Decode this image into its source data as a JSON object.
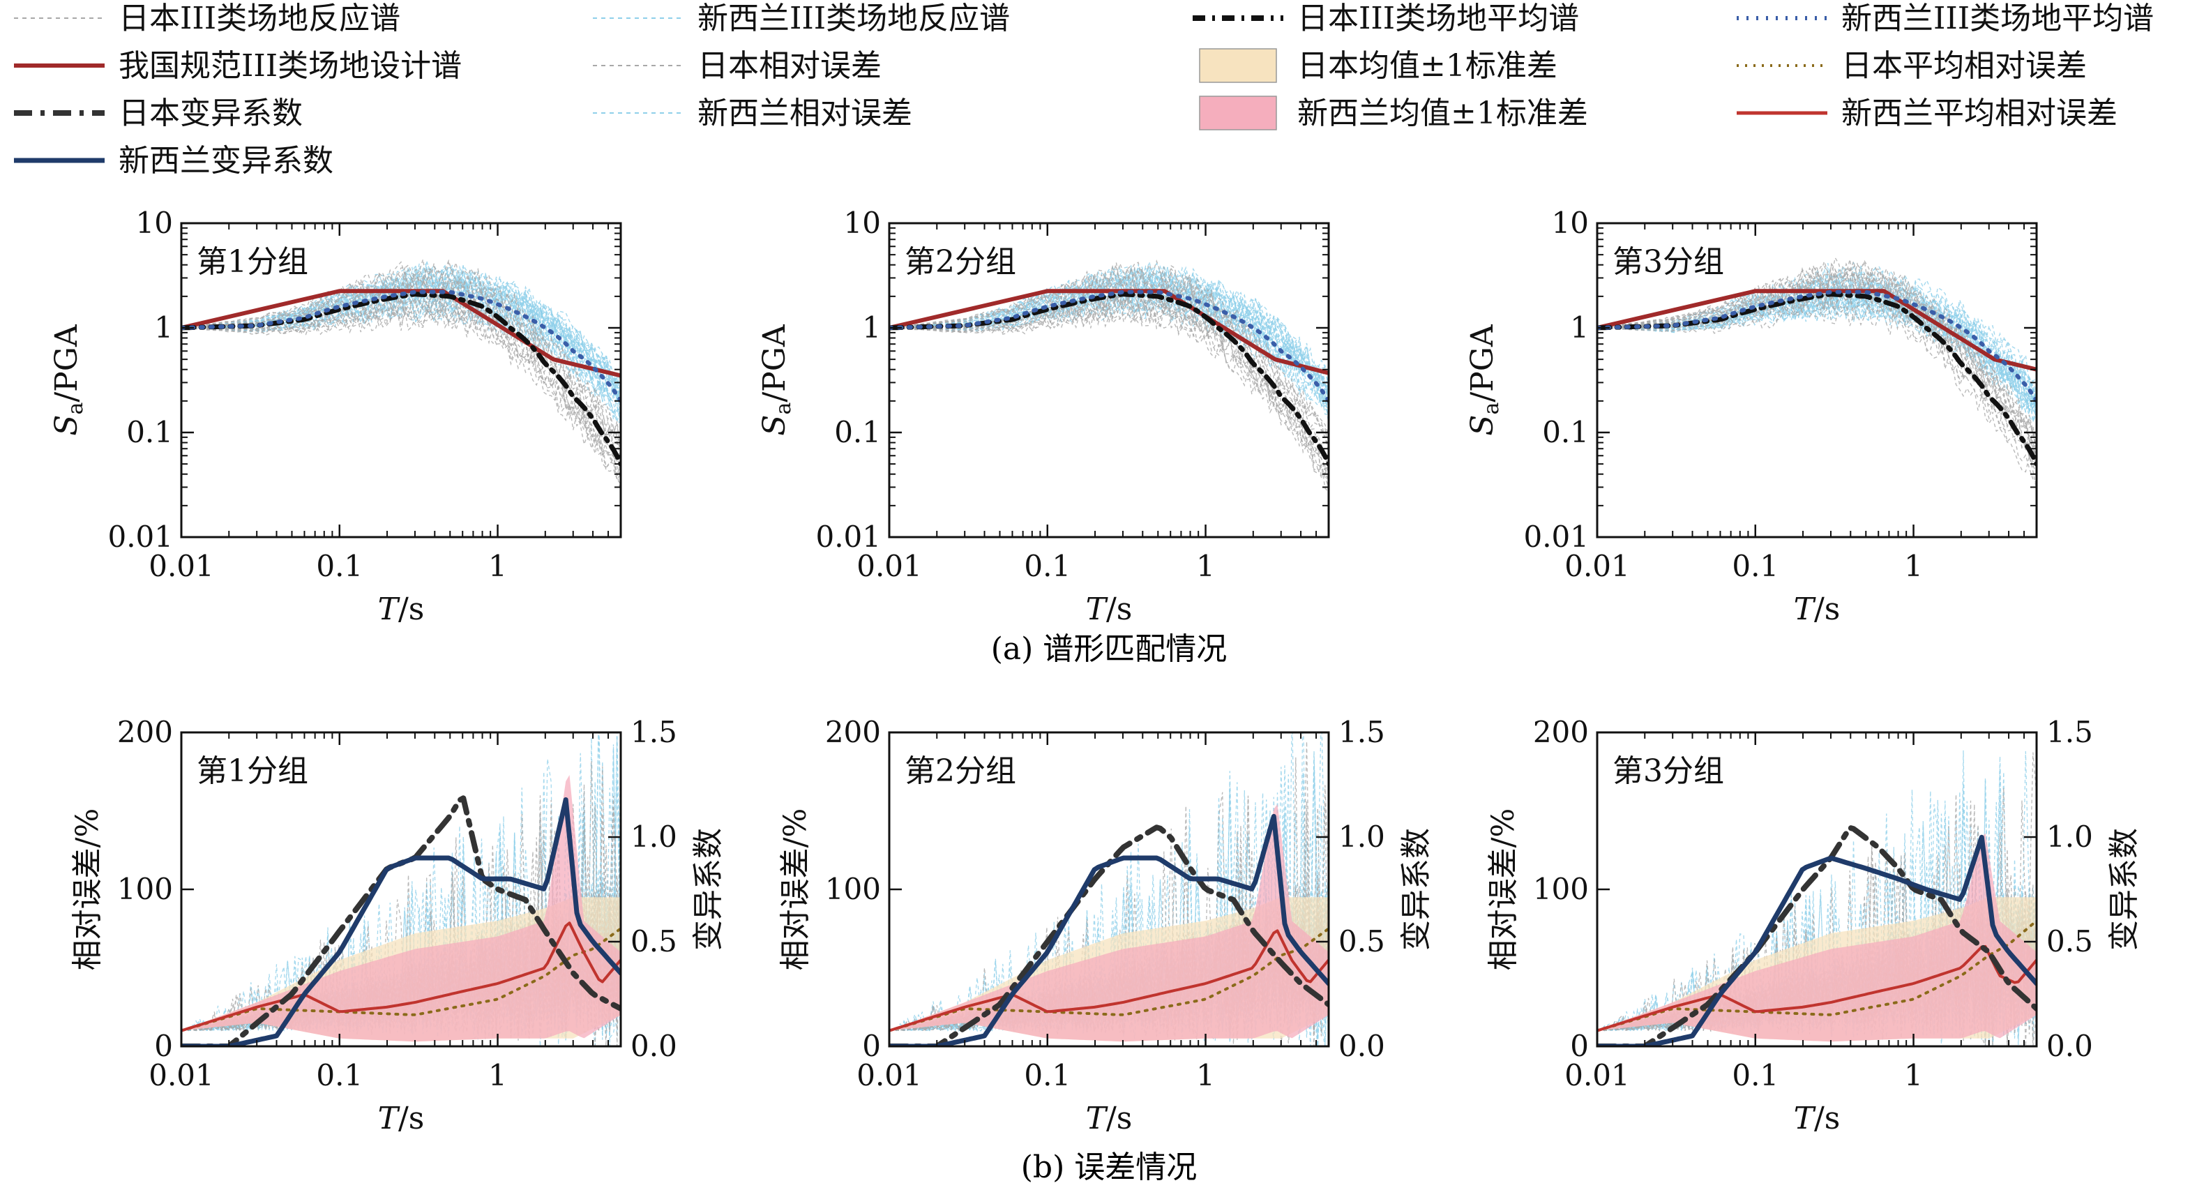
{
  "legend": {
    "items": [
      {
        "label": "日本III类场地反应谱",
        "style": "jp-resp"
      },
      {
        "label": "新西兰III类场地反应谱",
        "style": "nz-resp"
      },
      {
        "label": "日本III类场地平均谱",
        "style": "jp-mean"
      },
      {
        "label": "新西兰III类场地平均谱",
        "style": "nz-mean"
      },
      {
        "label": "我国规范III类场地设计谱",
        "style": "design"
      },
      {
        "label": "日本相对误差",
        "style": "jp-relerr"
      },
      {
        "label": "日本均值±1标准差",
        "style": "jp-band"
      },
      {
        "label": "日本平均相对误差",
        "style": "jp-meanerr"
      },
      {
        "label": "日本变异系数",
        "style": "jp-cov"
      },
      {
        "label": "新西兰相对误差",
        "style": "nz-relerr"
      },
      {
        "label": "新西兰均值±1标准差",
        "style": "nz-band"
      },
      {
        "label": "新西兰平均相对误差",
        "style": "nz-meanerr"
      },
      {
        "label": "新西兰变异系数",
        "style": "nz-cov"
      }
    ]
  },
  "colors": {
    "jp_resp": "#a8a8a8",
    "nz_resp": "#8fd0ea",
    "design": "#a02a2a",
    "jp_mean": "#111111",
    "nz_mean": "#3a5ea8",
    "jp_band_fill": "#f7e3bf",
    "nz_band_fill": "#f5aebd",
    "jp_meanerr": "#8a6a1a",
    "nz_meanerr": "#c0342e",
    "jp_cov": "#333333",
    "nz_cov": "#1f3b6a"
  },
  "captions": {
    "a": "(a) 谱形匹配情况",
    "b": "(b) 误差情况"
  },
  "axes_text": {
    "x_label_T": "T",
    "x_label_unit": "/s",
    "y_label_spectrum_main": "S",
    "y_label_spectrum_sub": "a",
    "y_label_spectrum_rest": "/PGA",
    "y_label_relerr": "相对误差/%",
    "y2_label_cov": "变异系数"
  },
  "chart_data": [
    {
      "type": "line",
      "panel": "spectrum",
      "group_label": "第1分组",
      "x_scale": "log",
      "y_scale": "log",
      "xlim": [
        0.01,
        6
      ],
      "ylim": [
        0.01,
        10
      ],
      "x_ticks": [
        "0.01",
        "0.1",
        "1"
      ],
      "y_ticks": [
        "0.01",
        "0.1",
        "1",
        "10"
      ],
      "series": [
        {
          "name": "我国规范III类场地设计谱",
          "x": [
            0.01,
            0.1,
            0.45,
            2.25,
            6.0
          ],
          "y": [
            1.0,
            2.25,
            2.25,
            0.5,
            0.35
          ]
        },
        {
          "name": "日本III类场地平均谱",
          "x": [
            0.01,
            0.03,
            0.06,
            0.1,
            0.2,
            0.3,
            0.5,
            0.8,
            1.2,
            2.0,
            3.0,
            4.5,
            6.0
          ],
          "y": [
            1.0,
            1.05,
            1.2,
            1.5,
            1.9,
            2.1,
            2.0,
            1.6,
            1.0,
            0.45,
            0.22,
            0.1,
            0.05
          ]
        },
        {
          "name": "新西兰III类场地平均谱",
          "x": [
            0.01,
            0.03,
            0.06,
            0.1,
            0.2,
            0.3,
            0.5,
            0.8,
            1.2,
            2.0,
            3.0,
            4.5,
            6.0
          ],
          "y": [
            1.0,
            1.05,
            1.25,
            1.6,
            2.0,
            2.2,
            2.2,
            1.9,
            1.5,
            1.0,
            0.6,
            0.35,
            0.2
          ]
        }
      ]
    },
    {
      "type": "line",
      "panel": "spectrum",
      "group_label": "第2分组",
      "x_scale": "log",
      "y_scale": "log",
      "xlim": [
        0.01,
        6
      ],
      "ylim": [
        0.01,
        10
      ],
      "x_ticks": [
        "0.01",
        "0.1",
        "1"
      ],
      "y_ticks": [
        "0.01",
        "0.1",
        "1",
        "10"
      ],
      "series": [
        {
          "name": "我国规范III类场地设计谱",
          "x": [
            0.01,
            0.1,
            0.55,
            2.75,
            6.0
          ],
          "y": [
            1.0,
            2.25,
            2.25,
            0.5,
            0.37
          ]
        },
        {
          "name": "日本III类场地平均谱",
          "x": [
            0.01,
            0.03,
            0.06,
            0.1,
            0.2,
            0.3,
            0.5,
            0.8,
            1.2,
            2.0,
            3.0,
            4.5,
            6.0
          ],
          "y": [
            1.0,
            1.05,
            1.2,
            1.5,
            1.9,
            2.1,
            2.0,
            1.6,
            1.0,
            0.45,
            0.22,
            0.1,
            0.05
          ]
        },
        {
          "name": "新西兰III类场地平均谱",
          "x": [
            0.01,
            0.03,
            0.06,
            0.1,
            0.2,
            0.3,
            0.5,
            0.8,
            1.2,
            2.0,
            3.0,
            4.5,
            6.0
          ],
          "y": [
            1.0,
            1.05,
            1.25,
            1.6,
            2.0,
            2.2,
            2.2,
            1.9,
            1.5,
            1.0,
            0.6,
            0.35,
            0.2
          ]
        }
      ]
    },
    {
      "type": "line",
      "panel": "spectrum",
      "group_label": "第3分组",
      "x_scale": "log",
      "y_scale": "log",
      "xlim": [
        0.01,
        6
      ],
      "ylim": [
        0.01,
        10
      ],
      "x_ticks": [
        "0.01",
        "0.1",
        "1"
      ],
      "y_ticks": [
        "0.01",
        "0.1",
        "1",
        "10"
      ],
      "series": [
        {
          "name": "我国规范III类场地设计谱",
          "x": [
            0.01,
            0.1,
            0.65,
            3.25,
            6.0
          ],
          "y": [
            1.0,
            2.25,
            2.25,
            0.5,
            0.4
          ]
        },
        {
          "name": "日本III类场地平均谱",
          "x": [
            0.01,
            0.03,
            0.06,
            0.1,
            0.2,
            0.3,
            0.5,
            0.8,
            1.2,
            2.0,
            3.0,
            4.5,
            6.0
          ],
          "y": [
            1.0,
            1.05,
            1.2,
            1.5,
            1.9,
            2.1,
            2.0,
            1.6,
            1.0,
            0.45,
            0.22,
            0.1,
            0.05
          ]
        },
        {
          "name": "新西兰III类场地平均谱",
          "x": [
            0.01,
            0.03,
            0.06,
            0.1,
            0.2,
            0.3,
            0.5,
            0.8,
            1.2,
            2.0,
            3.0,
            4.5,
            6.0
          ],
          "y": [
            1.0,
            1.05,
            1.25,
            1.6,
            2.0,
            2.2,
            2.2,
            1.9,
            1.5,
            1.0,
            0.6,
            0.35,
            0.2
          ]
        }
      ]
    },
    {
      "type": "line",
      "panel": "error",
      "group_label": "第1分组",
      "x_scale": "log",
      "xlim": [
        0.01,
        6
      ],
      "ylim": [
        0,
        200
      ],
      "y2lim": [
        0,
        1.5
      ],
      "x_ticks": [
        "0.01",
        "0.1",
        "1"
      ],
      "y_ticks": [
        "0",
        "100",
        "200"
      ],
      "y2_ticks": [
        "0.0",
        "0.5",
        "1.0",
        "1.5"
      ],
      "series": [
        {
          "name": "日本均值±1标准差",
          "x": [
            0.01,
            0.03,
            0.1,
            0.3,
            1,
            2,
            3,
            6
          ],
          "upper": [
            10,
            28,
            55,
            72,
            80,
            88,
            95,
            95
          ],
          "lower": [
            10,
            15,
            5,
            3,
            5,
            5,
            5,
            20
          ]
        },
        {
          "name": "新西兰均值±1标准差",
          "x": [
            0.01,
            0.03,
            0.1,
            0.3,
            1,
            2,
            2.8,
            3.5,
            6
          ],
          "upper": [
            10,
            28,
            48,
            62,
            70,
            80,
            180,
            80,
            60
          ],
          "lower": [
            10,
            15,
            5,
            3,
            5,
            5,
            10,
            5,
            20
          ]
        },
        {
          "name": "日本平均相对误差",
          "x": [
            0.01,
            0.03,
            0.1,
            0.3,
            1,
            2,
            3,
            4,
            6
          ],
          "y": [
            10,
            24,
            22,
            20,
            30,
            45,
            58,
            62,
            75
          ]
        },
        {
          "name": "新西兰平均相对误差",
          "x": [
            0.01,
            0.03,
            0.06,
            0.1,
            0.2,
            0.3,
            0.6,
            1,
            2,
            2.8,
            3.5,
            4.5,
            6
          ],
          "y": [
            10,
            25,
            33,
            22,
            25,
            28,
            35,
            40,
            50,
            80,
            60,
            40,
            55
          ]
        },
        {
          "name": "日本变异系数",
          "x": [
            0.02,
            0.05,
            0.1,
            0.2,
            0.3,
            0.5,
            0.6,
            0.8,
            1,
            1.5,
            2,
            3,
            4,
            6
          ],
          "y": [
            0.0,
            0.25,
            0.55,
            0.85,
            0.9,
            1.1,
            1.2,
            0.8,
            0.75,
            0.7,
            0.55,
            0.35,
            0.25,
            0.18
          ]
        },
        {
          "name": "新西兰变异系数",
          "x": [
            0.02,
            0.04,
            0.06,
            0.1,
            0.2,
            0.3,
            0.5,
            0.8,
            1.2,
            2,
            2.7,
            3.2,
            4,
            6
          ],
          "y": [
            0.0,
            0.05,
            0.25,
            0.45,
            0.85,
            0.9,
            0.9,
            0.8,
            0.8,
            0.75,
            1.18,
            0.6,
            0.5,
            0.35
          ]
        }
      ]
    },
    {
      "type": "line",
      "panel": "error",
      "group_label": "第2分组",
      "x_scale": "log",
      "xlim": [
        0.01,
        6
      ],
      "ylim": [
        0,
        200
      ],
      "y2lim": [
        0,
        1.5
      ],
      "x_ticks": [
        "0.01",
        "0.1",
        "1"
      ],
      "y_ticks": [
        "0",
        "100",
        "200"
      ],
      "y2_ticks": [
        "0.0",
        "0.5",
        "1.0",
        "1.5"
      ],
      "series": [
        {
          "name": "日本均值±1标准差",
          "x": [
            0.01,
            0.03,
            0.1,
            0.3,
            1,
            2,
            3,
            6
          ],
          "upper": [
            10,
            28,
            55,
            72,
            80,
            88,
            95,
            95
          ],
          "lower": [
            10,
            15,
            5,
            3,
            5,
            5,
            5,
            20
          ]
        },
        {
          "name": "新西兰均值±1标准差",
          "x": [
            0.01,
            0.03,
            0.1,
            0.3,
            1,
            2,
            2.8,
            3.5,
            6
          ],
          "upper": [
            10,
            28,
            48,
            62,
            70,
            80,
            160,
            80,
            60
          ],
          "lower": [
            10,
            15,
            5,
            3,
            5,
            5,
            10,
            5,
            20
          ]
        },
        {
          "name": "日本平均相对误差",
          "x": [
            0.01,
            0.03,
            0.1,
            0.3,
            1,
            2,
            3,
            4,
            6
          ],
          "y": [
            10,
            24,
            22,
            20,
            30,
            45,
            58,
            62,
            75
          ]
        },
        {
          "name": "新西兰平均相对误差",
          "x": [
            0.01,
            0.03,
            0.06,
            0.1,
            0.2,
            0.3,
            0.6,
            1,
            2,
            2.8,
            3.5,
            4.5,
            6
          ],
          "y": [
            10,
            25,
            33,
            22,
            25,
            28,
            35,
            40,
            50,
            75,
            55,
            40,
            55
          ]
        },
        {
          "name": "日本变异系数",
          "x": [
            0.02,
            0.05,
            0.1,
            0.2,
            0.3,
            0.5,
            0.6,
            0.8,
            1,
            1.5,
            2,
            3,
            4,
            6
          ],
          "y": [
            0.0,
            0.2,
            0.5,
            0.8,
            0.95,
            1.05,
            1.0,
            0.85,
            0.75,
            0.7,
            0.55,
            0.4,
            0.3,
            0.2
          ]
        },
        {
          "name": "新西兰变异系数",
          "x": [
            0.02,
            0.04,
            0.06,
            0.1,
            0.2,
            0.3,
            0.5,
            0.8,
            1.2,
            2,
            2.7,
            3.2,
            4,
            6
          ],
          "y": [
            0.0,
            0.05,
            0.25,
            0.45,
            0.85,
            0.9,
            0.9,
            0.8,
            0.8,
            0.75,
            1.1,
            0.55,
            0.45,
            0.3
          ]
        }
      ]
    },
    {
      "type": "line",
      "panel": "error",
      "group_label": "第3分组",
      "x_scale": "log",
      "xlim": [
        0.01,
        6
      ],
      "ylim": [
        0,
        200
      ],
      "y2lim": [
        0,
        1.5
      ],
      "x_ticks": [
        "0.01",
        "0.1",
        "1"
      ],
      "y_ticks": [
        "0",
        "100",
        "200"
      ],
      "y2_ticks": [
        "0.0",
        "0.5",
        "1.0",
        "1.5"
      ],
      "series": [
        {
          "name": "日本均值±1标准差",
          "x": [
            0.01,
            0.03,
            0.1,
            0.3,
            1,
            2,
            3,
            6
          ],
          "upper": [
            10,
            28,
            55,
            72,
            80,
            88,
            95,
            95
          ],
          "lower": [
            10,
            15,
            5,
            3,
            5,
            5,
            5,
            20
          ]
        },
        {
          "name": "新西兰均值±1标准差",
          "x": [
            0.01,
            0.03,
            0.1,
            0.3,
            1,
            2,
            2.8,
            3.5,
            6
          ],
          "upper": [
            10,
            28,
            48,
            62,
            70,
            80,
            140,
            80,
            60
          ],
          "lower": [
            10,
            15,
            5,
            3,
            5,
            5,
            10,
            5,
            20
          ]
        },
        {
          "name": "日本平均相对误差",
          "x": [
            0.01,
            0.03,
            0.1,
            0.3,
            1,
            2,
            3,
            4,
            6
          ],
          "y": [
            10,
            24,
            22,
            20,
            30,
            45,
            58,
            65,
            80
          ]
        },
        {
          "name": "新西兰平均相对误差",
          "x": [
            0.01,
            0.03,
            0.06,
            0.1,
            0.2,
            0.3,
            0.6,
            1,
            2,
            2.8,
            3.5,
            4.5,
            6
          ],
          "y": [
            10,
            25,
            33,
            22,
            25,
            28,
            35,
            40,
            50,
            65,
            45,
            40,
            55
          ]
        },
        {
          "name": "日本变异系数",
          "x": [
            0.02,
            0.05,
            0.1,
            0.2,
            0.3,
            0.4,
            0.6,
            0.8,
            1,
            1.5,
            2,
            3,
            4,
            6
          ],
          "y": [
            0.0,
            0.2,
            0.45,
            0.75,
            0.9,
            1.05,
            0.95,
            0.85,
            0.75,
            0.7,
            0.55,
            0.45,
            0.3,
            0.18
          ]
        },
        {
          "name": "新西兰变异系数",
          "x": [
            0.02,
            0.04,
            0.06,
            0.1,
            0.2,
            0.3,
            0.5,
            0.8,
            1.2,
            2,
            2.7,
            3.2,
            4,
            6
          ],
          "y": [
            0.0,
            0.05,
            0.25,
            0.45,
            0.85,
            0.9,
            0.85,
            0.8,
            0.75,
            0.7,
            1.0,
            0.55,
            0.45,
            0.3
          ]
        }
      ]
    }
  ]
}
